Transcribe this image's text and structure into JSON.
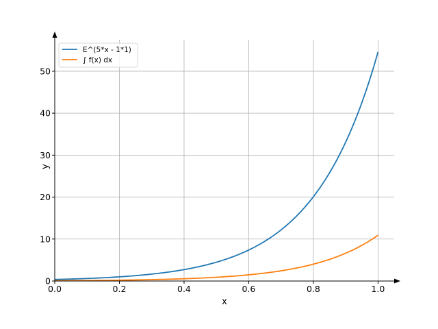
{
  "chart_data": {
    "type": "line",
    "xlabel": "x",
    "ylabel": "y",
    "xlim": [
      0.0,
      1.05
    ],
    "ylim": [
      0,
      57.5
    ],
    "xticks": [
      0.0,
      0.2,
      0.4,
      0.6,
      0.8,
      1.0
    ],
    "xtick_labels": [
      "0.0",
      "0.2",
      "0.4",
      "0.6",
      "0.8",
      "1.0"
    ],
    "yticks": [
      0,
      10,
      20,
      30,
      40,
      50
    ],
    "ytick_labels": [
      "0",
      "10",
      "20",
      "30",
      "40",
      "50"
    ],
    "grid": true,
    "legend": "top-left",
    "x": [
      0.0,
      0.05,
      0.1,
      0.15,
      0.2,
      0.25,
      0.3,
      0.35,
      0.4,
      0.45,
      0.5,
      0.55,
      0.6,
      0.65,
      0.7,
      0.75,
      0.8,
      0.85,
      0.9,
      0.95,
      1.0
    ],
    "series": [
      {
        "name": "E^(5*x - 1*1)",
        "color": "#1f77b4",
        "values": [
          0.368,
          0.472,
          0.607,
          0.779,
          1.0,
          1.284,
          1.649,
          2.117,
          2.718,
          3.49,
          4.482,
          5.755,
          7.389,
          9.488,
          12.18,
          15.64,
          20.09,
          25.79,
          33.12,
          42.52,
          54.6
        ]
      },
      {
        "name": "∫ f(x) dx",
        "color": "#ff7f0e",
        "values": [
          0.074,
          0.094,
          0.121,
          0.156,
          0.2,
          0.257,
          0.33,
          0.423,
          0.544,
          0.698,
          0.896,
          1.151,
          1.478,
          1.898,
          2.437,
          3.128,
          4.017,
          5.159,
          6.624,
          8.505,
          10.92
        ]
      }
    ]
  }
}
